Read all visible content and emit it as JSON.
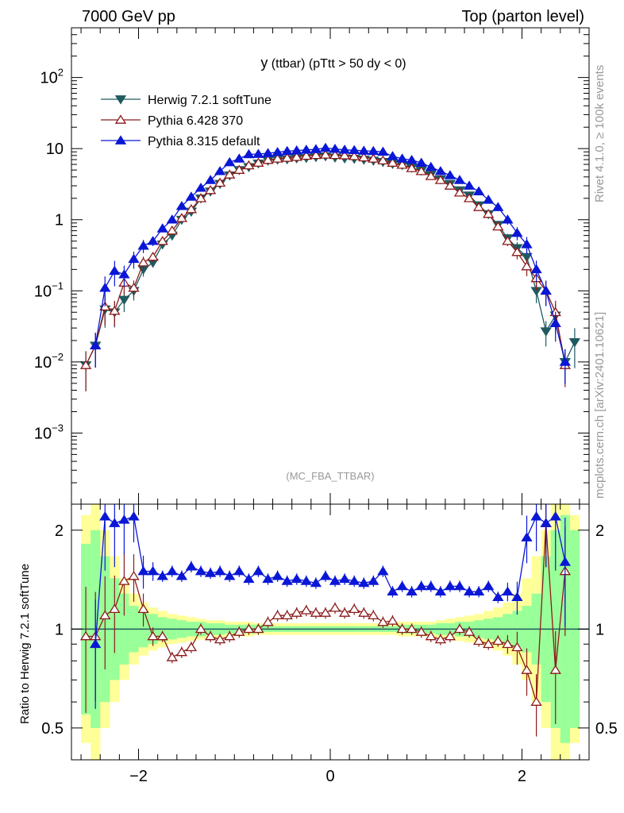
{
  "header": {
    "left": "7000 GeV pp",
    "right": "Top (parton level)"
  },
  "side_labels": {
    "top": "Rivet 4.1.0, ≥ 100k events",
    "bottom": "mcplots.cern.ch [arXiv:2401.10621]"
  },
  "colors": {
    "herwig": "#1f5a5f",
    "pythia6": "#8b1a1a",
    "pythia8": "#0a17d6",
    "band_yellow": "#ffff99",
    "band_green": "#99ff99"
  },
  "chart_data": [
    {
      "type": "scatter",
      "title_main": "y",
      "title_rest": " (ttbar) (pTtt > 50 dy < 0)",
      "watermark": "(MC_FBA_TTBAR)",
      "yscale": "log",
      "xlim": [
        -2.7,
        2.7
      ],
      "ylim": [
        0.0001,
        500
      ],
      "ytick_labels": [
        {
          "value": 100,
          "base": "10",
          "exp": "2"
        },
        {
          "value": 10,
          "base": "10",
          "exp": ""
        },
        {
          "value": 1,
          "base": "1",
          "exp": ""
        },
        {
          "value": 0.1,
          "base": "10",
          "exp": "−1"
        },
        {
          "value": 0.01,
          "base": "10",
          "exp": "−2"
        },
        {
          "value": 0.001,
          "base": "10",
          "exp": "−3"
        }
      ],
      "legend": [
        {
          "key": "herwig",
          "label": "Herwig 7.2.1 softTune",
          "marker": "triangle-down-filled"
        },
        {
          "key": "pythia6",
          "label": "Pythia 6.428 370",
          "marker": "triangle-up-open"
        },
        {
          "key": "pythia8",
          "label": "Pythia 8.315 default",
          "marker": "triangle-up-filled"
        }
      ],
      "x": [
        -2.55,
        -2.45,
        -2.35,
        -2.25,
        -2.15,
        -2.05,
        -1.95,
        -1.85,
        -1.75,
        -1.65,
        -1.55,
        -1.45,
        -1.35,
        -1.25,
        -1.15,
        -1.05,
        -0.95,
        -0.85,
        -0.75,
        -0.65,
        -0.55,
        -0.45,
        -0.35,
        -0.25,
        -0.15,
        -0.05,
        0.05,
        0.15,
        0.25,
        0.35,
        0.45,
        0.55,
        0.65,
        0.75,
        0.85,
        0.95,
        1.05,
        1.15,
        1.25,
        1.35,
        1.45,
        1.55,
        1.65,
        1.75,
        1.85,
        1.95,
        2.05,
        2.15,
        2.25,
        2.35,
        2.45,
        2.55
      ],
      "series": [
        {
          "name": "Herwig 7.2.1 softTune",
          "key": "herwig",
          "values": [
            0.009,
            0.017,
            0.055,
            0.05,
            0.075,
            0.1,
            0.2,
            0.25,
            0.45,
            0.6,
            1.0,
            1.3,
            2.0,
            2.5,
            3.2,
            4.2,
            5.0,
            5.5,
            6.2,
            6.8,
            7.0,
            7.1,
            7.3,
            7.4,
            7.6,
            7.8,
            7.5,
            7.3,
            7.2,
            7.0,
            6.8,
            6.5,
            6.1,
            5.9,
            5.4,
            4.9,
            4.3,
            3.7,
            3.2,
            2.6,
            2.2,
            1.6,
            1.2,
            0.85,
            0.55,
            0.4,
            0.3,
            0.1,
            0.027,
            0.045,
            0.01,
            0.019
          ]
        },
        {
          "name": "Pythia 6.428 370",
          "key": "pythia6",
          "values": [
            0.009,
            0.017,
            0.06,
            0.052,
            0.13,
            0.11,
            0.25,
            0.3,
            0.5,
            0.7,
            1.05,
            1.4,
            2.0,
            2.6,
            3.3,
            4.3,
            5.0,
            5.8,
            6.3,
            6.9,
            7.2,
            7.4,
            7.6,
            7.9,
            8.1,
            8.2,
            8.1,
            8.0,
            7.8,
            7.5,
            7.2,
            6.8,
            6.3,
            5.9,
            5.3,
            4.8,
            4.1,
            3.6,
            3.0,
            2.4,
            2.0,
            1.5,
            1.2,
            0.8,
            0.5,
            0.35,
            0.22,
            0.15,
            0.1,
            0.05,
            0.009,
            null
          ]
        },
        {
          "name": "Pythia 8.315 default",
          "key": "pythia8",
          "values": [
            null,
            0.017,
            0.11,
            0.19,
            0.17,
            0.28,
            0.43,
            0.5,
            0.75,
            1.0,
            1.55,
            2.1,
            2.8,
            3.6,
            4.8,
            6.4,
            7.2,
            8.3,
            8.4,
            8.6,
            8.9,
            9.2,
            9.4,
            9.6,
            9.8,
            10.2,
            9.9,
            9.6,
            9.5,
            9.3,
            9.2,
            9.0,
            7.8,
            7.2,
            6.9,
            6.3,
            5.5,
            4.8,
            4.2,
            3.6,
            3.0,
            2.5,
            1.9,
            1.5,
            1.0,
            0.65,
            0.45,
            0.2,
            0.1,
            0.035,
            0.01,
            null
          ]
        }
      ]
    },
    {
      "type": "scatter",
      "ylabel": "Ratio to Herwig 7.2.1 softTune",
      "yscale": "log",
      "xlim": [
        -2.7,
        2.7
      ],
      "ylim": [
        0.4,
        2.4
      ],
      "ytick_labels": [
        {
          "value": 2,
          "label": "2"
        },
        {
          "value": 1,
          "label": "1"
        },
        {
          "value": 0.5,
          "label": "0.5"
        }
      ],
      "xtick_labels": [
        {
          "value": -2,
          "label": "−2"
        },
        {
          "value": 0,
          "label": "0"
        },
        {
          "value": 2,
          "label": "2"
        }
      ],
      "x": [
        -2.55,
        -2.45,
        -2.35,
        -2.25,
        -2.15,
        -2.05,
        -1.95,
        -1.85,
        -1.75,
        -1.65,
        -1.55,
        -1.45,
        -1.35,
        -1.25,
        -1.15,
        -1.05,
        -0.95,
        -0.85,
        -0.75,
        -0.65,
        -0.55,
        -0.45,
        -0.35,
        -0.25,
        -0.15,
        -0.05,
        0.05,
        0.15,
        0.25,
        0.35,
        0.45,
        0.55,
        0.65,
        0.75,
        0.85,
        0.95,
        1.05,
        1.15,
        1.25,
        1.35,
        1.45,
        1.55,
        1.65,
        1.75,
        1.85,
        1.95,
        2.05,
        2.15,
        2.25,
        2.35,
        2.45,
        2.55
      ],
      "band_green": [
        0.55,
        0.5,
        0.6,
        0.7,
        0.78,
        0.85,
        0.88,
        0.9,
        0.92,
        0.93,
        0.94,
        0.95,
        0.95,
        0.96,
        0.96,
        0.97,
        0.97,
        0.97,
        0.97,
        0.98,
        0.98,
        0.98,
        0.98,
        0.98,
        0.98,
        0.98,
        0.98,
        0.98,
        0.98,
        0.98,
        0.98,
        0.98,
        0.98,
        0.97,
        0.97,
        0.97,
        0.97,
        0.96,
        0.96,
        0.95,
        0.95,
        0.94,
        0.93,
        0.92,
        0.9,
        0.88,
        0.85,
        0.78,
        0.6,
        0.5,
        0.45,
        0.5
      ],
      "band_yellow": [
        0.45,
        0.4,
        0.5,
        0.6,
        0.7,
        0.78,
        0.83,
        0.86,
        0.88,
        0.9,
        0.91,
        0.92,
        0.93,
        0.94,
        0.94,
        0.95,
        0.95,
        0.95,
        0.96,
        0.96,
        0.96,
        0.96,
        0.96,
        0.96,
        0.96,
        0.96,
        0.96,
        0.96,
        0.96,
        0.96,
        0.96,
        0.96,
        0.96,
        0.95,
        0.95,
        0.95,
        0.95,
        0.94,
        0.93,
        0.92,
        0.91,
        0.9,
        0.88,
        0.86,
        0.83,
        0.78,
        0.7,
        0.6,
        0.5,
        0.4,
        0.4,
        0.45
      ],
      "series": [
        {
          "name": "Pythia 6.428 370",
          "key": "pythia6",
          "values": [
            0.95,
            0.95,
            1.1,
            1.15,
            1.4,
            1.45,
            1.15,
            0.95,
            0.95,
            0.82,
            0.85,
            0.88,
            1.0,
            0.95,
            0.93,
            0.95,
            0.98,
            1.0,
            1.0,
            1.05,
            1.1,
            1.1,
            1.12,
            1.14,
            1.12,
            1.12,
            1.16,
            1.12,
            1.15,
            1.12,
            1.1,
            1.05,
            1.06,
            1.0,
            1.0,
            0.98,
            0.95,
            0.93,
            0.95,
            1.0,
            0.98,
            0.92,
            0.9,
            0.92,
            0.9,
            0.88,
            0.75,
            0.6,
            2.1,
            0.75,
            1.5,
            null
          ]
        },
        {
          "name": "Pythia 8.315 default",
          "key": "pythia8",
          "values": [
            null,
            0.9,
            2.2,
            2.1,
            2.15,
            2.2,
            1.5,
            1.5,
            1.45,
            1.5,
            1.45,
            1.55,
            1.5,
            1.48,
            1.5,
            1.45,
            1.5,
            1.42,
            1.5,
            1.42,
            1.45,
            1.4,
            1.42,
            1.4,
            1.38,
            1.45,
            1.4,
            1.42,
            1.4,
            1.38,
            1.4,
            1.5,
            1.3,
            1.35,
            1.3,
            1.35,
            1.35,
            1.3,
            1.35,
            1.35,
            1.3,
            1.3,
            1.35,
            1.25,
            1.3,
            1.25,
            1.9,
            2.2,
            2.1,
            2.2,
            1.6,
            null
          ]
        }
      ]
    }
  ]
}
